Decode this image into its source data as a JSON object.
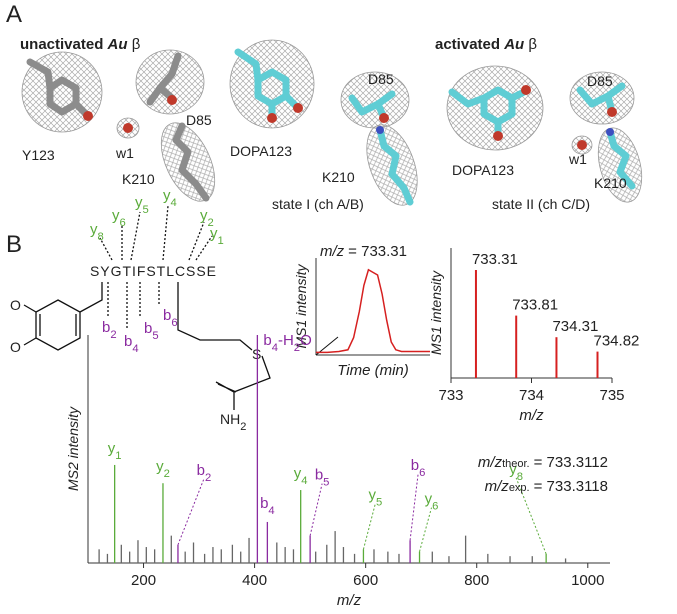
{
  "panel_a": {
    "label": "A",
    "unactivated": {
      "prefix": "unactivated",
      "species": "Au",
      "subunit": "β"
    },
    "activated": {
      "prefix": "activated",
      "species": "Au",
      "subunit": "β"
    },
    "residue_labels": [
      "Y123",
      "D85",
      "w1",
      "K210",
      "DOPA123",
      "D85",
      "K210",
      "D85",
      "DOPA123",
      "w1",
      "K210"
    ],
    "state_labels": [
      "state I (ch A/B)",
      "state II (ch C/D)"
    ]
  },
  "panel_b": {
    "label": "B",
    "peptide": {
      "sequence": "SYGTIFSTLCSSE",
      "y_ions": [
        [
          "y",
          "8"
        ],
        [
          "y",
          "6"
        ],
        [
          "y",
          "5"
        ],
        [
          "y",
          "4"
        ],
        [
          "y",
          "2"
        ],
        [
          "y",
          "1"
        ]
      ],
      "b_ions": [
        [
          "b",
          "2"
        ],
        [
          "b",
          "4"
        ],
        [
          "b",
          "5"
        ],
        [
          "b",
          "6"
        ]
      ],
      "atoms": {
        "o1": "O",
        "o2": "O",
        "s": "S",
        "amine": [
          "NH",
          "2"
        ]
      }
    }
  },
  "chart_data": [
    {
      "type": "line",
      "title": {
        "var": "m/z",
        "text": "= 733.31"
      },
      "ylabel": "MS1 intensity",
      "xlabel": "Time (min)",
      "x": [
        0,
        10,
        20,
        28,
        33,
        38,
        42,
        46,
        50,
        54,
        58,
        62,
        66,
        70,
        75,
        80,
        90,
        100
      ],
      "series": [
        {
          "color": "#d62020",
          "values": [
            3,
            3,
            4,
            6,
            20,
            50,
            80,
            98,
            95,
            92,
            70,
            40,
            15,
            6,
            4,
            4,
            4,
            4
          ]
        }
      ],
      "xlim": [
        0,
        100
      ],
      "ylim": [
        0,
        100
      ]
    },
    {
      "type": "stem",
      "xlabel": "m/z",
      "ylabel": "MS1 intensity",
      "series": [
        {
          "color": "#d62020",
          "x": [
            733.31,
            733.81,
            734.31,
            734.82
          ],
          "values": [
            90,
            52,
            34,
            22
          ]
        }
      ],
      "xlim": [
        733,
        735
      ],
      "xticks": [
        733,
        734,
        735
      ],
      "ylim": [
        0,
        100
      ]
    },
    {
      "type": "stem",
      "xlabel": "m/z",
      "ylabel": "MS2 intensity",
      "annotations": [
        {
          "var": "m/z",
          "sub": "theor.",
          "text": "= 733.3112"
        },
        {
          "var": "m/z",
          "sub": "exp.",
          "text": "= 733.3118"
        }
      ],
      "series": [
        {
          "color": "#666666",
          "x": [
            120,
            135,
            160,
            175,
            190,
            205,
            220,
            250,
            275,
            290,
            310,
            325,
            340,
            360,
            375,
            390,
            440,
            455,
            470,
            510,
            530,
            545,
            560,
            580,
            615,
            640,
            660,
            720,
            750,
            780,
            820,
            860,
            900,
            960
          ],
          "values": [
            6,
            4,
            8,
            5,
            10,
            7,
            6,
            12,
            5,
            9,
            4,
            7,
            6,
            8,
            5,
            11,
            9,
            7,
            6,
            5,
            8,
            14,
            7,
            4,
            6,
            5,
            4,
            5,
            3,
            12,
            4,
            3,
            3,
            2
          ]
        },
        {
          "color": "#5aab3a",
          "x": [
            148,
            235,
            483,
            596,
            697,
            925
          ],
          "values": [
            43,
            35,
            32,
            6,
            5,
            4
          ],
          "labels": [
            [
              "y",
              "1"
            ],
            [
              "y",
              "2"
            ],
            [
              "y",
              "4"
            ],
            [
              "y",
              "5"
            ],
            [
              "y",
              "6"
            ],
            [
              "y",
              "8"
            ]
          ]
        },
        {
          "color": "#8a2aa0",
          "x": [
            262,
            405,
            423,
            500,
            680
          ],
          "values": [
            8,
            100,
            18,
            12,
            10
          ],
          "labels": [
            [
              "b",
              "2"
            ],
            [
              "b",
              "4",
              "-H",
              "2",
              "O"
            ],
            [
              "b",
              "4"
            ],
            [
              "b",
              "5"
            ],
            [
              "b",
              "6"
            ]
          ]
        }
      ],
      "xlim": [
        100,
        1040
      ],
      "xticks": [
        200,
        400,
        600,
        800,
        1000
      ],
      "ylim": [
        0,
        100
      ]
    }
  ]
}
